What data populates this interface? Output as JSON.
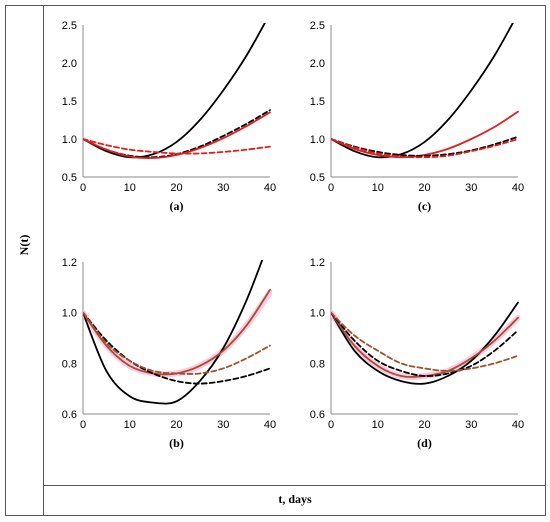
{
  "figure": {
    "ylabel": "N(t)",
    "xlabel": "t, days"
  },
  "chart_data": [
    {
      "type": "line",
      "panel": "(a)",
      "xlim": [
        0,
        40
      ],
      "ylim": [
        0.5,
        2.5
      ],
      "xticks": [
        "0",
        "10",
        "20",
        "30",
        "40"
      ],
      "yticks": [
        "0.5",
        "1.0",
        "1.5",
        "2.0",
        "2.5"
      ],
      "x": [
        0,
        5,
        10,
        15,
        20,
        25,
        30,
        35,
        40
      ],
      "series": [
        {
          "color": "#000000",
          "dash": "solid",
          "values": [
            1.0,
            0.84,
            0.76,
            0.8,
            0.96,
            1.25,
            1.64,
            2.1,
            2.65
          ]
        },
        {
          "color": "#000000",
          "dash": "dashed",
          "values": [
            1.0,
            0.86,
            0.78,
            0.76,
            0.8,
            0.9,
            1.04,
            1.2,
            1.38
          ]
        },
        {
          "color": "#e02020",
          "dash": "solid",
          "values": [
            1.0,
            0.86,
            0.77,
            0.75,
            0.79,
            0.88,
            1.01,
            1.17,
            1.35
          ]
        },
        {
          "color": "#e02020",
          "dash": "dashed",
          "values": [
            1.0,
            0.92,
            0.86,
            0.83,
            0.81,
            0.81,
            0.83,
            0.86,
            0.9
          ]
        }
      ],
      "grid": false
    },
    {
      "type": "line",
      "panel": "(c)",
      "xlim": [
        0,
        40
      ],
      "ylim": [
        0.5,
        2.5
      ],
      "xticks": [
        "0",
        "10",
        "20",
        "30",
        "40"
      ],
      "yticks": [
        "0.5",
        "1.0",
        "1.5",
        "2.0",
        "2.5"
      ],
      "x": [
        0,
        5,
        10,
        15,
        20,
        25,
        30,
        35,
        40
      ],
      "series": [
        {
          "color": "#000000",
          "dash": "solid",
          "values": [
            1.0,
            0.84,
            0.76,
            0.8,
            0.96,
            1.25,
            1.64,
            2.1,
            2.65
          ]
        },
        {
          "color": "#e02020",
          "dash": "solid",
          "values": [
            1.0,
            0.87,
            0.79,
            0.76,
            0.79,
            0.87,
            1.0,
            1.16,
            1.36
          ]
        },
        {
          "color": "#000000",
          "dash": "dashed",
          "values": [
            1.0,
            0.9,
            0.83,
            0.79,
            0.78,
            0.8,
            0.85,
            0.93,
            1.03
          ]
        },
        {
          "color": "#e02020",
          "dash": "dashed",
          "values": [
            1.0,
            0.89,
            0.81,
            0.77,
            0.76,
            0.78,
            0.84,
            0.91,
            1.0
          ]
        }
      ],
      "grid": false
    },
    {
      "type": "line",
      "panel": "(b)",
      "xlim": [
        0,
        40
      ],
      "ylim": [
        0.6,
        1.2
      ],
      "xticks": [
        "0",
        "10",
        "20",
        "30",
        "40"
      ],
      "yticks": [
        "0.6",
        "0.8",
        "1.0",
        "1.2"
      ],
      "x": [
        0,
        5,
        10,
        15,
        20,
        25,
        30,
        35,
        40
      ],
      "series": [
        {
          "color": "#ffc8e6",
          "dash": "solid",
          "width": 6,
          "values": [
            1.0,
            0.87,
            0.79,
            0.76,
            0.76,
            0.79,
            0.85,
            0.95,
            1.08
          ]
        },
        {
          "color": "#000000",
          "dash": "solid",
          "values": [
            1.0,
            0.77,
            0.67,
            0.645,
            0.65,
            0.73,
            0.86,
            1.05,
            1.29
          ]
        },
        {
          "color": "#a0522d",
          "dash": "solid",
          "values": [
            1.0,
            0.87,
            0.79,
            0.76,
            0.76,
            0.79,
            0.85,
            0.95,
            1.09
          ]
        },
        {
          "color": "#000000",
          "dash": "dashed",
          "values": [
            1.0,
            0.89,
            0.81,
            0.76,
            0.73,
            0.72,
            0.73,
            0.75,
            0.78
          ]
        },
        {
          "color": "#a0522d",
          "dash": "dashed",
          "values": [
            1.0,
            0.88,
            0.81,
            0.77,
            0.76,
            0.76,
            0.78,
            0.82,
            0.87
          ]
        }
      ],
      "grid": false
    },
    {
      "type": "line",
      "panel": "(d)",
      "xlim": [
        0,
        40
      ],
      "ylim": [
        0.6,
        1.2
      ],
      "xticks": [
        "0",
        "10",
        "20",
        "30",
        "40"
      ],
      "yticks": [
        "0.6",
        "0.8",
        "1.0",
        "1.2"
      ],
      "x": [
        0,
        5,
        10,
        15,
        20,
        25,
        30,
        35,
        40
      ],
      "series": [
        {
          "color": "#ffc8e6",
          "dash": "solid",
          "width": 6,
          "values": [
            1.0,
            0.87,
            0.79,
            0.75,
            0.75,
            0.77,
            0.82,
            0.89,
            0.98
          ]
        },
        {
          "color": "#000000",
          "dash": "solid",
          "values": [
            1.0,
            0.85,
            0.77,
            0.73,
            0.72,
            0.75,
            0.81,
            0.91,
            1.04
          ]
        },
        {
          "color": "#a0522d",
          "dash": "solid",
          "values": [
            1.0,
            0.87,
            0.79,
            0.75,
            0.75,
            0.77,
            0.82,
            0.89,
            0.98
          ]
        },
        {
          "color": "#000000",
          "dash": "dashed",
          "values": [
            1.0,
            0.89,
            0.81,
            0.77,
            0.75,
            0.76,
            0.79,
            0.85,
            0.93
          ]
        },
        {
          "color": "#a0522d",
          "dash": "dashed",
          "values": [
            1.0,
            0.91,
            0.85,
            0.8,
            0.78,
            0.77,
            0.78,
            0.8,
            0.83
          ]
        }
      ],
      "grid": false
    }
  ]
}
